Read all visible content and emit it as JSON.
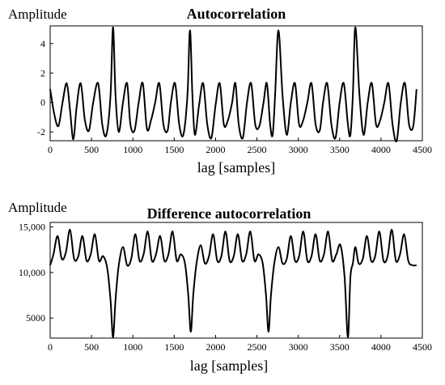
{
  "chart_data": [
    {
      "type": "line",
      "title": "Autocorrelation",
      "ylabel": "Amplitude",
      "xlabel": "lag [samples]",
      "xlim": [
        0,
        4500
      ],
      "ylim": [
        -2.6,
        5.2
      ],
      "xticks": [
        0,
        500,
        1000,
        1500,
        2000,
        2500,
        3000,
        3500,
        4000,
        4500
      ],
      "xtick_labels": [
        "0",
        "500",
        "1000",
        "1500",
        "2000",
        "2500",
        "3000",
        "3500",
        "4000",
        "4500"
      ],
      "yticks": [
        -2,
        0,
        2,
        4
      ],
      "ytick_labels": [
        "-2",
        "0",
        "2",
        "4"
      ],
      "grid": false,
      "series": [
        {
          "x": [
            0,
            50,
            100,
            150,
            200,
            240,
            280,
            320,
            370,
            420,
            470,
            520,
            580,
            630,
            680,
            730,
            760,
            790,
            830,
            880,
            930,
            970,
            1020,
            1070,
            1120,
            1170,
            1220,
            1270,
            1320,
            1370,
            1420,
            1460,
            1510,
            1560,
            1610,
            1660,
            1690,
            1720,
            1750,
            1800,
            1850,
            1900,
            1950,
            2000,
            2050,
            2100,
            2150,
            2200,
            2240,
            2280,
            2330,
            2380,
            2430,
            2480,
            2530,
            2580,
            2620,
            2660,
            2690,
            2720,
            2760,
            2810,
            2860,
            2910,
            2960,
            3010,
            3060,
            3110,
            3160,
            3210,
            3260,
            3300,
            3350,
            3400,
            3450,
            3500,
            3550,
            3600,
            3630,
            3660,
            3690,
            3740,
            3790,
            3840,
            3890,
            3940,
            3990,
            4040,
            4090,
            4140,
            4190,
            4240,
            4290,
            4340,
            4390,
            4430
          ],
          "y": [
            0.9,
            -0.8,
            -1.6,
            0.0,
            1.3,
            -0.5,
            -2.5,
            -0.3,
            1.3,
            -1.2,
            -1.9,
            0.0,
            1.3,
            -1.5,
            -2.2,
            0.5,
            5.1,
            0.5,
            -2.0,
            0.0,
            1.3,
            -1.5,
            -1.9,
            0.0,
            1.3,
            -1.8,
            -1.2,
            0.0,
            1.3,
            -1.5,
            -1.9,
            0.0,
            1.3,
            -1.5,
            -2.2,
            0.5,
            4.9,
            0.5,
            -2.2,
            -0.2,
            1.3,
            -1.5,
            -2.4,
            -0.2,
            1.3,
            -1.5,
            -1.2,
            0.0,
            1.3,
            -1.5,
            -2.4,
            0.0,
            1.3,
            -1.5,
            -1.6,
            0.0,
            1.3,
            -1.5,
            -2.2,
            0.5,
            4.9,
            0.5,
            -2.2,
            0.0,
            1.3,
            -1.5,
            -1.2,
            0.0,
            1.3,
            -1.5,
            -1.9,
            0.0,
            1.3,
            -1.5,
            -2.4,
            0.0,
            1.3,
            -1.5,
            -2.2,
            0.5,
            5.1,
            0.5,
            -2.2,
            0.0,
            1.3,
            -1.5,
            -1.2,
            0.0,
            1.3,
            -1.5,
            -2.6,
            0.0,
            1.3,
            -1.5,
            -1.6,
            0.9
          ]
        }
      ]
    },
    {
      "type": "line",
      "title": "Difference autocorrelation",
      "ylabel": "Amplitude",
      "xlabel": "lag [samples]",
      "xlim": [
        0,
        4500
      ],
      "ylim": [
        2800,
        15500
      ],
      "xticks": [
        0,
        500,
        1000,
        1500,
        2000,
        2500,
        3000,
        3500,
        4000,
        4500
      ],
      "xtick_labels": [
        "0",
        "500",
        "1000",
        "1500",
        "2000",
        "2500",
        "3000",
        "3500",
        "4000",
        "4500"
      ],
      "yticks": [
        5000,
        10000,
        15000
      ],
      "ytick_labels": [
        "5000",
        "10,000",
        "15,000"
      ],
      "grid": false,
      "series": [
        {
          "x": [
            0,
            40,
            90,
            140,
            190,
            240,
            290,
            340,
            390,
            440,
            490,
            540,
            590,
            640,
            690,
            730,
            760,
            790,
            830,
            880,
            930,
            980,
            1030,
            1080,
            1130,
            1180,
            1230,
            1280,
            1330,
            1380,
            1430,
            1480,
            1530,
            1580,
            1630,
            1670,
            1700,
            1730,
            1770,
            1820,
            1870,
            1920,
            1970,
            2020,
            2070,
            2120,
            2170,
            2220,
            2270,
            2320,
            2370,
            2420,
            2470,
            2520,
            2570,
            2610,
            2640,
            2670,
            2710,
            2760,
            2810,
            2860,
            2910,
            2960,
            3010,
            3060,
            3110,
            3160,
            3210,
            3260,
            3310,
            3360,
            3410,
            3460,
            3510,
            3560,
            3600,
            3630,
            3660,
            3690,
            3730,
            3780,
            3830,
            3880,
            3930,
            3980,
            4030,
            4080,
            4130,
            4180,
            4230,
            4280,
            4330,
            4380,
            4430
          ],
          "y": [
            10800,
            12000,
            14000,
            11500,
            12200,
            14700,
            11500,
            11800,
            14000,
            11300,
            12000,
            14200,
            11300,
            11800,
            10500,
            7000,
            2900,
            7000,
            10800,
            12800,
            10800,
            11500,
            14200,
            11300,
            12000,
            14500,
            11300,
            12000,
            14000,
            11300,
            12000,
            14500,
            11300,
            12000,
            11000,
            7500,
            3500,
            7500,
            11000,
            13000,
            11000,
            11800,
            14200,
            11300,
            11800,
            14500,
            11300,
            11800,
            14200,
            11300,
            12000,
            14500,
            11300,
            12000,
            11000,
            7500,
            3500,
            7500,
            11000,
            12800,
            11000,
            11500,
            14000,
            11300,
            11800,
            14500,
            11300,
            11800,
            14200,
            11300,
            12000,
            14500,
            11300,
            12000,
            13000,
            9500,
            2900,
            9500,
            11000,
            12800,
            11000,
            11500,
            14000,
            11300,
            11800,
            14500,
            11300,
            11800,
            14700,
            11300,
            12000,
            14200,
            11300,
            10800,
            10800
          ]
        }
      ]
    }
  ]
}
